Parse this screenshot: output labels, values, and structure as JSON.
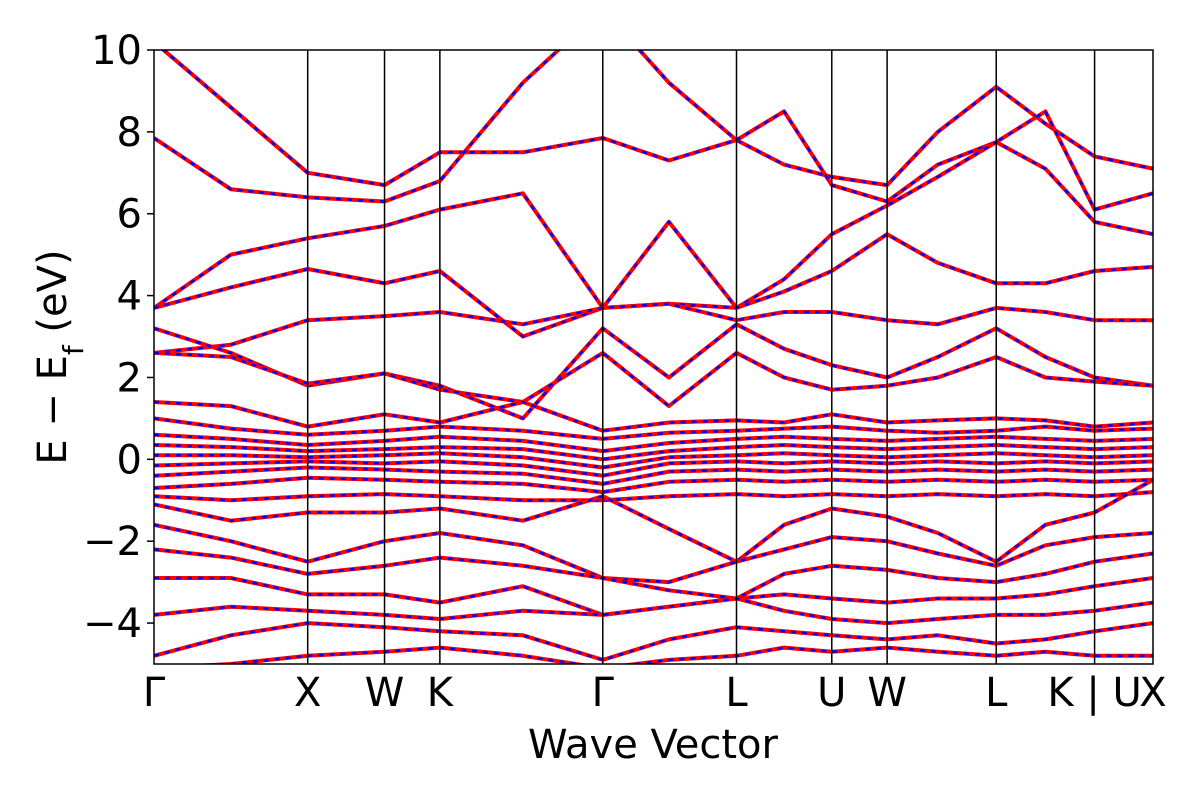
{
  "chart_data": {
    "type": "line",
    "title": "",
    "xlabel": "Wave Vector",
    "ylabel": {
      "prefix": "E − E",
      "subscript": "f",
      "suffix": " (eV)"
    },
    "ylim": [
      -5,
      10
    ],
    "yticks": [
      {
        "value": 10,
        "label": "10"
      },
      {
        "value": 8,
        "label": "8"
      },
      {
        "value": 6,
        "label": "6"
      },
      {
        "value": 4,
        "label": "4"
      },
      {
        "value": 2,
        "label": "2"
      },
      {
        "value": 0,
        "label": "0"
      },
      {
        "value": -2,
        "label": "−2"
      },
      {
        "value": -4,
        "label": "−4"
      }
    ],
    "xlim": [
      0,
      6.5
    ],
    "kpoints": [
      {
        "x": 0.0,
        "label": "Γ"
      },
      {
        "x": 1.0,
        "label": "X"
      },
      {
        "x": 1.5,
        "label": "W"
      },
      {
        "x": 1.86,
        "label": "K"
      },
      {
        "x": 2.92,
        "label": "Γ"
      },
      {
        "x": 3.79,
        "label": "L"
      },
      {
        "x": 4.41,
        "label": "U"
      },
      {
        "x": 4.77,
        "label": "W"
      },
      {
        "x": 5.48,
        "label": "L"
      },
      {
        "x": 6.12,
        "label": "K | U"
      },
      {
        "x": 6.5,
        "label": "X"
      }
    ],
    "grid": false,
    "legend": "none",
    "series_styles": [
      {
        "color": "#ff0000",
        "style": "solid"
      },
      {
        "color": "#0000ff",
        "style": "dashed"
      }
    ],
    "bands": [
      [
        0,
        10.2,
        0.5,
        8.6,
        1.0,
        7.0,
        1.5,
        6.7,
        1.86,
        7.5,
        2.4,
        7.5,
        2.92,
        7.85,
        3.35,
        7.3,
        3.79,
        7.8,
        4.1,
        7.2,
        4.41,
        6.9,
        4.77,
        6.7,
        5.1,
        8.0,
        5.48,
        9.1,
        5.8,
        8.2,
        6.12,
        7.4,
        6.5,
        7.1
      ],
      [
        0,
        7.85,
        0.5,
        6.6,
        1.0,
        6.4,
        1.5,
        6.3,
        1.86,
        6.8,
        2.4,
        9.2,
        2.92,
        11.0
      ],
      [
        2.92,
        11.0,
        3.35,
        9.2,
        3.79,
        7.8,
        4.1,
        8.5,
        4.41,
        6.7,
        4.77,
        6.3,
        5.1,
        7.2,
        5.48,
        7.75,
        5.8,
        8.5,
        6.12,
        6.1,
        6.5,
        6.5
      ],
      [
        0,
        3.7,
        0.5,
        5.0,
        1.0,
        5.4,
        1.5,
        5.7,
        1.86,
        6.1,
        2.4,
        6.5,
        2.92,
        3.7,
        3.35,
        5.8,
        3.79,
        3.7,
        4.1,
        4.4,
        4.41,
        5.5,
        4.77,
        6.2,
        5.1,
        6.9,
        5.48,
        7.75,
        5.8,
        7.1,
        6.12,
        5.8,
        6.5,
        5.5
      ],
      [
        0,
        3.7,
        0.5,
        4.2,
        1.0,
        4.65,
        1.5,
        4.3,
        1.86,
        4.6,
        2.4,
        3.0,
        2.92,
        3.7,
        3.35,
        3.8,
        3.79,
        3.7,
        4.1,
        4.1,
        4.41,
        4.6,
        4.77,
        5.5,
        5.1,
        4.8,
        5.48,
        4.3,
        5.8,
        4.3,
        6.12,
        4.6,
        6.5,
        4.7
      ],
      [
        0,
        2.6,
        0.5,
        2.8,
        1.0,
        3.4,
        1.5,
        3.5,
        1.86,
        3.6,
        2.4,
        3.3,
        2.92,
        3.7,
        3.35,
        3.8,
        3.79,
        3.4,
        4.1,
        3.6,
        4.41,
        3.6,
        4.77,
        3.4,
        5.1,
        3.3,
        5.48,
        3.7,
        5.8,
        3.6,
        6.12,
        3.4,
        6.5,
        3.4
      ],
      [
        0,
        3.2,
        0.5,
        2.6,
        1.0,
        1.8,
        1.5,
        2.1,
        1.86,
        1.8,
        2.4,
        1.0,
        2.92,
        3.2,
        3.35,
        2.0,
        3.79,
        3.3,
        4.1,
        2.7,
        4.41,
        2.3,
        4.77,
        2.0,
        5.1,
        2.5,
        5.48,
        3.2,
        5.8,
        2.5,
        6.12,
        2.0,
        6.5,
        1.8
      ],
      [
        0,
        2.6,
        0.5,
        2.5,
        1.0,
        1.85,
        1.5,
        2.1,
        1.86,
        1.7,
        2.4,
        1.4,
        2.92,
        2.6,
        3.35,
        1.3,
        3.79,
        2.6,
        4.1,
        2.0,
        4.41,
        1.7,
        4.77,
        1.8,
        5.1,
        2.0,
        5.48,
        2.5,
        5.8,
        2.0,
        6.12,
        1.9,
        6.5,
        1.8
      ],
      [
        0,
        1.4,
        0.5,
        1.3,
        1.0,
        0.8,
        1.5,
        1.1,
        1.86,
        0.9,
        2.4,
        1.4,
        2.92,
        0.7,
        3.35,
        0.9,
        3.79,
        0.95,
        4.1,
        0.9,
        4.41,
        1.1,
        4.77,
        0.9,
        5.1,
        0.95,
        5.48,
        1.0,
        5.8,
        0.95,
        6.12,
        0.8,
        6.5,
        0.9
      ],
      [
        0,
        1.0,
        0.5,
        0.75,
        1.0,
        0.6,
        1.5,
        0.7,
        1.86,
        0.8,
        2.4,
        0.7,
        2.92,
        0.5,
        3.35,
        0.65,
        3.79,
        0.7,
        4.1,
        0.75,
        4.41,
        0.8,
        4.77,
        0.7,
        5.1,
        0.65,
        5.48,
        0.7,
        5.8,
        0.8,
        6.12,
        0.7,
        6.5,
        0.75
      ],
      [
        0,
        0.6,
        0.5,
        0.5,
        1.0,
        0.35,
        1.5,
        0.45,
        1.86,
        0.55,
        2.4,
        0.45,
        2.92,
        0.2,
        3.35,
        0.4,
        3.79,
        0.5,
        4.1,
        0.55,
        4.41,
        0.5,
        4.77,
        0.45,
        5.1,
        0.5,
        5.48,
        0.55,
        5.8,
        0.5,
        6.12,
        0.45,
        6.5,
        0.5
      ],
      [
        0,
        0.35,
        0.5,
        0.3,
        1.0,
        0.2,
        1.5,
        0.25,
        1.86,
        0.3,
        2.4,
        0.25,
        2.92,
        0.0,
        3.35,
        0.2,
        3.79,
        0.3,
        4.1,
        0.35,
        4.41,
        0.3,
        4.77,
        0.25,
        5.1,
        0.3,
        5.48,
        0.35,
        5.8,
        0.3,
        6.12,
        0.25,
        6.5,
        0.3
      ],
      [
        0,
        0.1,
        0.5,
        0.1,
        1.0,
        0.05,
        1.5,
        0.1,
        1.86,
        0.15,
        2.4,
        0.05,
        2.92,
        -0.2,
        3.35,
        0.05,
        3.79,
        0.1,
        4.1,
        0.15,
        4.41,
        0.1,
        4.77,
        0.05,
        5.1,
        0.1,
        5.48,
        0.15,
        5.8,
        0.1,
        6.12,
        0.05,
        6.5,
        0.1
      ],
      [
        0,
        -0.15,
        0.5,
        -0.1,
        1.0,
        -0.05,
        1.5,
        -0.1,
        1.86,
        -0.05,
        2.4,
        -0.15,
        2.92,
        -0.4,
        3.35,
        -0.1,
        3.79,
        -0.05,
        4.1,
        -0.1,
        4.41,
        -0.05,
        4.77,
        -0.1,
        5.1,
        -0.05,
        5.48,
        -0.1,
        5.8,
        -0.05,
        6.12,
        -0.1,
        6.5,
        -0.05
      ],
      [
        0,
        -0.4,
        0.5,
        -0.3,
        1.0,
        -0.2,
        1.5,
        -0.25,
        1.86,
        -0.3,
        2.4,
        -0.35,
        2.92,
        -0.6,
        3.35,
        -0.3,
        3.79,
        -0.25,
        4.1,
        -0.3,
        4.41,
        -0.25,
        4.77,
        -0.3,
        5.1,
        -0.25,
        5.48,
        -0.3,
        5.8,
        -0.25,
        6.12,
        -0.3,
        6.5,
        -0.25
      ],
      [
        0,
        -0.7,
        0.5,
        -0.6,
        1.0,
        -0.45,
        1.5,
        -0.5,
        1.86,
        -0.55,
        2.4,
        -0.6,
        2.92,
        -0.8,
        3.35,
        -0.55,
        3.79,
        -0.5,
        4.1,
        -0.55,
        4.41,
        -0.5,
        4.77,
        -0.55,
        5.1,
        -0.5,
        5.48,
        -0.55,
        5.8,
        -0.5,
        6.12,
        -0.55,
        6.5,
        -0.5
      ],
      [
        0,
        -0.9,
        0.5,
        -1.0,
        1.0,
        -0.9,
        1.5,
        -0.85,
        1.86,
        -0.9,
        2.4,
        -1.0,
        2.92,
        -1.0,
        3.35,
        -0.9,
        3.79,
        -0.85,
        4.1,
        -0.9,
        4.41,
        -0.85,
        4.77,
        -0.9,
        5.1,
        -0.85,
        5.48,
        -0.9,
        5.8,
        -0.85,
        6.12,
        -0.9,
        6.5,
        -0.8
      ],
      [
        0,
        -1.1,
        0.5,
        -1.5,
        1.0,
        -1.3,
        1.5,
        -1.3,
        1.86,
        -1.2,
        2.4,
        -1.5,
        2.92,
        -0.9,
        3.35,
        -1.7,
        3.79,
        -2.5,
        4.1,
        -1.6,
        4.41,
        -1.2,
        4.77,
        -1.4,
        5.1,
        -1.8,
        5.48,
        -2.5,
        5.8,
        -1.6,
        6.12,
        -1.3,
        6.5,
        -0.5
      ],
      [
        0,
        -1.6,
        0.5,
        -2.0,
        1.0,
        -2.5,
        1.5,
        -2.0,
        1.86,
        -1.8,
        2.4,
        -2.1,
        2.92,
        -2.9,
        3.35,
        -3.0,
        3.79,
        -2.5,
        4.1,
        -2.2,
        4.41,
        -1.9,
        4.77,
        -2.0,
        5.1,
        -2.3,
        5.48,
        -2.6,
        5.8,
        -2.1,
        6.12,
        -1.9,
        6.5,
        -1.8
      ],
      [
        0,
        -2.2,
        0.5,
        -2.4,
        1.0,
        -2.8,
        1.5,
        -2.6,
        1.86,
        -2.4,
        2.4,
        -2.6,
        2.92,
        -2.9,
        3.35,
        -3.2,
        3.79,
        -3.4,
        4.1,
        -2.8,
        4.41,
        -2.6,
        4.77,
        -2.7,
        5.1,
        -2.9,
        5.48,
        -3.0,
        5.8,
        -2.8,
        6.12,
        -2.5,
        6.5,
        -2.3
      ],
      [
        0,
        -2.9,
        0.5,
        -2.9,
        1.0,
        -3.3,
        1.5,
        -3.3,
        1.86,
        -3.5,
        2.4,
        -3.1,
        2.92,
        -3.8,
        3.35,
        -3.6,
        3.79,
        -3.4,
        4.1,
        -3.3,
        4.41,
        -3.4,
        4.77,
        -3.5,
        5.1,
        -3.4,
        5.48,
        -3.4,
        5.8,
        -3.3,
        6.12,
        -3.1,
        6.5,
        -2.9
      ],
      [
        0,
        -3.8,
        0.5,
        -3.6,
        1.0,
        -3.7,
        1.5,
        -3.8,
        1.86,
        -3.9,
        2.4,
        -3.7,
        2.92,
        -3.8,
        3.35,
        -3.6,
        3.79,
        -3.4,
        4.1,
        -3.7,
        4.41,
        -3.9,
        4.77,
        -4.0,
        5.1,
        -3.9,
        5.48,
        -3.8,
        5.8,
        -3.8,
        6.12,
        -3.7,
        6.5,
        -3.5
      ],
      [
        0,
        -4.8,
        0.5,
        -4.3,
        1.0,
        -4.0,
        1.5,
        -4.1,
        1.86,
        -4.2,
        2.4,
        -4.3,
        2.92,
        -4.9,
        3.35,
        -4.4,
        3.79,
        -4.1,
        4.1,
        -4.2,
        4.41,
        -4.3,
        4.77,
        -4.4,
        5.1,
        -4.3,
        5.48,
        -4.5,
        5.8,
        -4.4,
        6.12,
        -4.2,
        6.5,
        -4.0
      ],
      [
        0,
        -5.1,
        0.5,
        -5.0,
        1.0,
        -4.8,
        1.5,
        -4.7,
        1.86,
        -4.6,
        2.4,
        -4.8,
        2.92,
        -5.1,
        3.35,
        -4.9,
        3.79,
        -4.8,
        4.1,
        -4.6,
        4.41,
        -4.7,
        4.77,
        -4.6,
        5.1,
        -4.7,
        5.48,
        -4.8,
        5.8,
        -4.7,
        6.12,
        -4.8,
        6.5,
        -4.8
      ]
    ]
  }
}
